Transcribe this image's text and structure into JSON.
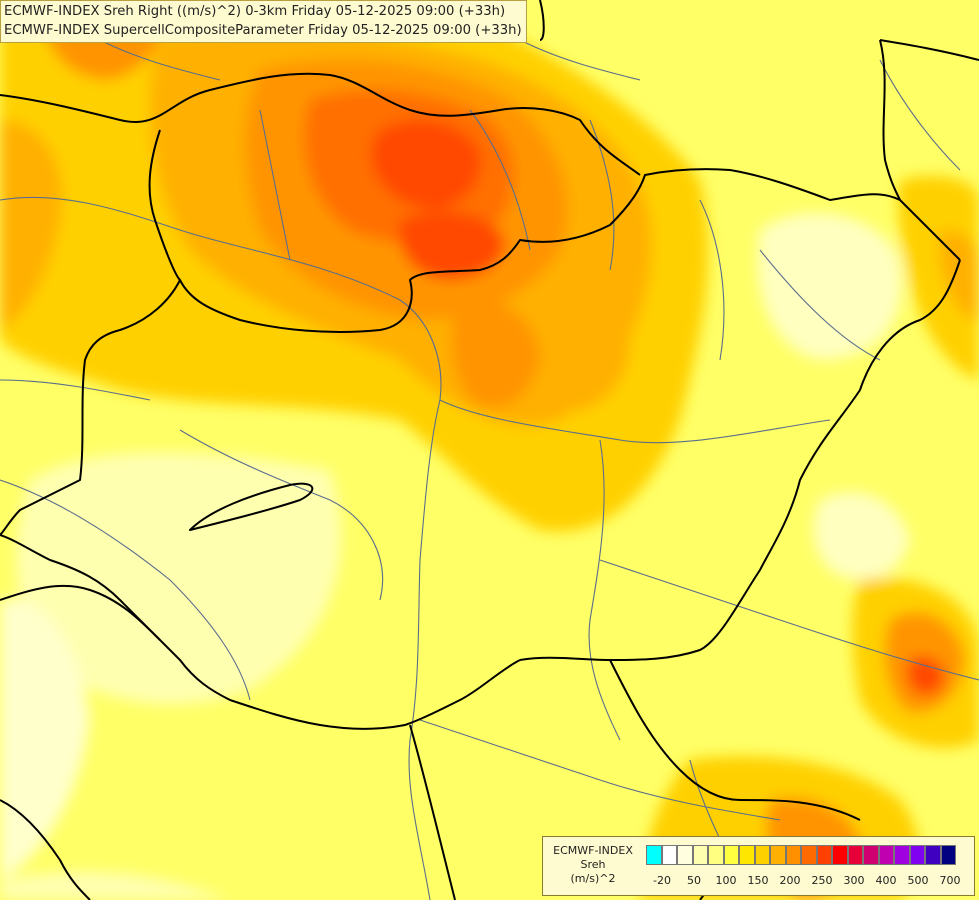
{
  "header": {
    "line1": "ECMWF-INDEX Sreh Right ((m/s)^2) 0-3km Friday 05-12-2025 09:00 (+33h)",
    "line2": "ECMWF-INDEX SupercellCompositeParameter Friday 05-12-2025 09:00 (+33h)"
  },
  "legend": {
    "source": "ECMWF-INDEX",
    "variable": "Sreh",
    "unit": "(m/s)^2",
    "swatch_colors": [
      "#00ffff",
      "#ffffff",
      "#ffffe0",
      "#ffffb0",
      "#ffff80",
      "#ffff40",
      "#ffe600",
      "#ffd000",
      "#ffb000",
      "#ff9000",
      "#ff6a00",
      "#ff4000",
      "#ff0000",
      "#e8003a",
      "#d00070",
      "#c000b0",
      "#a000e0",
      "#8000f0",
      "#4000c0",
      "#000080"
    ],
    "tick_labels": [
      "-20",
      "50",
      "100",
      "150",
      "200",
      "250",
      "300",
      "400",
      "500",
      "700"
    ]
  },
  "map": {
    "field_colors": {
      "background": "#ffff66",
      "pale": "#ffffb0",
      "light": "#ffffcc",
      "yellow": "#ffee22",
      "gold": "#ffd000",
      "amber": "#ffb000",
      "orange": "#ff9400",
      "dark_orange": "#ff7000",
      "red_orange": "#ff4a00"
    },
    "border_color": "#000000",
    "river_color": "#5a6e8c"
  }
}
